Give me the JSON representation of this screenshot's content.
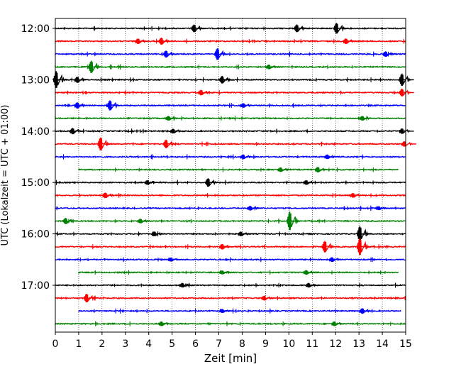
{
  "chart_data": {
    "type": "line",
    "xlabel": "Zeit  [min]",
    "ylabel": "UTC (Lokalzeit = UTC + 01:00)",
    "xlim": [
      0,
      15
    ],
    "x_ticks": [
      "0",
      "1",
      "2",
      "3",
      "4",
      "5",
      "6",
      "7",
      "8",
      "9",
      "10",
      "11",
      "12",
      "13",
      "14",
      "15"
    ],
    "y_tick_labels": [
      "12:00",
      "13:00",
      "14:00",
      "15:00",
      "16:00",
      "17:00"
    ],
    "grid": "vertical dotted at each minute",
    "colors": [
      "#000000",
      "#ff0000",
      "#0000ff",
      "#008000"
    ],
    "series": [
      {
        "row": "12:00",
        "color": "#000000",
        "x_start": 0,
        "x_end": 15,
        "events": [
          {
            "x": 12.1,
            "amp": 0.7
          },
          {
            "x": 6.0,
            "amp": 0.5
          },
          {
            "x": 10.4,
            "amp": 0.5
          }
        ]
      },
      {
        "row": "12:15",
        "color": "#ff0000",
        "x_start": 0,
        "x_end": 15,
        "events": [
          {
            "x": 4.6,
            "amp": 0.45
          },
          {
            "x": 3.6,
            "amp": 0.35
          },
          {
            "x": 12.5,
            "amp": 0.35
          }
        ]
      },
      {
        "row": "12:30",
        "color": "#0000ff",
        "x_start": 0,
        "x_end": 15,
        "events": [
          {
            "x": 7.0,
            "amp": 0.75
          },
          {
            "x": 4.8,
            "amp": 0.45
          },
          {
            "x": 14.2,
            "amp": 0.35
          }
        ]
      },
      {
        "row": "12:45",
        "color": "#008000",
        "x_start": 0,
        "x_end": 15,
        "events": [
          {
            "x": 1.6,
            "amp": 0.8
          },
          {
            "x": 9.2,
            "amp": 0.3
          }
        ]
      },
      {
        "row": "13:00",
        "color": "#000000",
        "x_start": 0,
        "x_end": 15,
        "events": [
          {
            "x": 0.1,
            "amp": 1.1
          },
          {
            "x": 14.9,
            "amp": 0.8
          },
          {
            "x": 7.2,
            "amp": 0.5
          },
          {
            "x": 1.0,
            "amp": 0.4
          }
        ]
      },
      {
        "row": "13:15",
        "color": "#ff0000",
        "x_start": 0,
        "x_end": 15,
        "events": [
          {
            "x": 14.9,
            "amp": 0.5
          },
          {
            "x": 6.3,
            "amp": 0.35
          }
        ]
      },
      {
        "row": "13:30",
        "color": "#0000ff",
        "x_start": 0,
        "x_end": 15,
        "events": [
          {
            "x": 2.4,
            "amp": 0.65
          },
          {
            "x": 1.0,
            "amp": 0.4
          },
          {
            "x": 8.1,
            "amp": 0.3
          }
        ]
      },
      {
        "row": "13:45",
        "color": "#008000",
        "x_start": 0,
        "x_end": 15,
        "events": [
          {
            "x": 4.9,
            "amp": 0.3
          },
          {
            "x": 13.2,
            "amp": 0.3
          }
        ]
      },
      {
        "row": "14:00",
        "color": "#000000",
        "x_start": 0,
        "x_end": 15,
        "events": [
          {
            "x": 0.8,
            "amp": 0.4
          },
          {
            "x": 14.9,
            "amp": 0.35
          },
          {
            "x": 5.1,
            "amp": 0.3
          }
        ]
      },
      {
        "row": "14:15",
        "color": "#ff0000",
        "x_start": 0,
        "x_end": 15,
        "events": [
          {
            "x": 2.0,
            "amp": 0.85
          },
          {
            "x": 4.8,
            "amp": 0.55
          },
          {
            "x": 15.0,
            "amp": 0.35
          }
        ]
      },
      {
        "row": "14:30",
        "color": "#0000ff",
        "x_start": 0,
        "x_end": 15,
        "events": [
          {
            "x": 8.1,
            "amp": 0.3
          },
          {
            "x": 11.7,
            "amp": 0.3
          }
        ]
      },
      {
        "row": "14:45",
        "color": "#008000",
        "x_start": 1.0,
        "x_end": 14.7,
        "events": [
          {
            "x": 11.3,
            "amp": 0.35
          },
          {
            "x": 9.7,
            "amp": 0.3
          }
        ]
      },
      {
        "row": "15:00",
        "color": "#000000",
        "x_start": 0,
        "x_end": 15,
        "events": [
          {
            "x": 6.6,
            "amp": 0.55
          },
          {
            "x": 4.0,
            "amp": 0.3
          },
          {
            "x": 10.8,
            "amp": 0.3
          }
        ]
      },
      {
        "row": "15:15",
        "color": "#ff0000",
        "x_start": 0,
        "x_end": 15,
        "events": [
          {
            "x": 2.2,
            "amp": 0.35
          },
          {
            "x": 12.8,
            "amp": 0.3
          }
        ]
      },
      {
        "row": "15:30",
        "color": "#0000ff",
        "x_start": 0,
        "x_end": 15,
        "events": [
          {
            "x": 8.4,
            "amp": 0.3
          },
          {
            "x": 13.9,
            "amp": 0.25
          }
        ]
      },
      {
        "row": "15:45",
        "color": "#008000",
        "x_start": 0,
        "x_end": 15,
        "events": [
          {
            "x": 10.1,
            "amp": 1.2
          },
          {
            "x": 0.5,
            "amp": 0.4
          },
          {
            "x": 3.7,
            "amp": 0.3
          }
        ]
      },
      {
        "row": "16:00",
        "color": "#000000",
        "x_start": 0,
        "x_end": 15,
        "events": [
          {
            "x": 13.1,
            "amp": 1.0
          },
          {
            "x": 4.3,
            "amp": 0.3
          },
          {
            "x": 8.0,
            "amp": 0.3
          }
        ]
      },
      {
        "row": "16:15",
        "color": "#ff0000",
        "x_start": 0,
        "x_end": 15,
        "events": [
          {
            "x": 11.6,
            "amp": 0.75
          },
          {
            "x": 13.1,
            "amp": 1.1
          },
          {
            "x": 7.2,
            "amp": 0.35
          }
        ]
      },
      {
        "row": "16:30",
        "color": "#0000ff",
        "x_start": 0,
        "x_end": 15,
        "events": [
          {
            "x": 11.9,
            "amp": 0.3
          },
          {
            "x": 5.0,
            "amp": 0.25
          }
        ]
      },
      {
        "row": "16:45",
        "color": "#008000",
        "x_start": 1.0,
        "x_end": 14.7,
        "events": [
          {
            "x": 10.8,
            "amp": 0.3
          },
          {
            "x": 7.2,
            "amp": 0.25
          }
        ]
      },
      {
        "row": "17:00",
        "color": "#000000",
        "x_start": 0,
        "x_end": 15,
        "events": [
          {
            "x": 10.9,
            "amp": 0.3
          },
          {
            "x": 5.5,
            "amp": 0.3
          }
        ]
      },
      {
        "row": "17:15",
        "color": "#ff0000",
        "x_start": 0,
        "x_end": 15,
        "events": [
          {
            "x": 1.4,
            "amp": 0.55
          },
          {
            "x": 9.0,
            "amp": 0.3
          }
        ]
      },
      {
        "row": "17:30",
        "color": "#0000ff",
        "x_start": 1.0,
        "x_end": 14.8,
        "events": [
          {
            "x": 13.2,
            "amp": 0.35
          },
          {
            "x": 7.2,
            "amp": 0.25
          }
        ]
      },
      {
        "row": "17:45",
        "color": "#008000",
        "x_start": 0,
        "x_end": 15,
        "events": [
          {
            "x": 4.6,
            "amp": 0.3
          },
          {
            "x": 12.0,
            "amp": 0.3
          }
        ]
      }
    ]
  }
}
